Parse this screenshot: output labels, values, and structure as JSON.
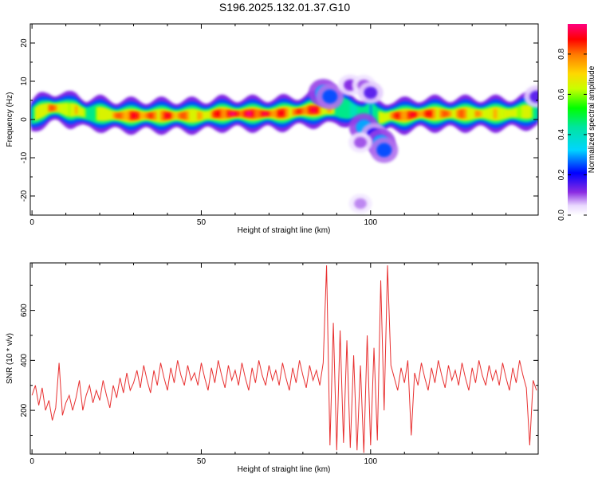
{
  "title": "S196.2025.132.01.37.G10",
  "chart_data": [
    {
      "type": "heatmap",
      "xlabel": "Height of straight line (km)",
      "ylabel": "Frequency (Hz)",
      "xlim": [
        -0.5,
        149.5
      ],
      "ylim": [
        -25,
        25
      ],
      "xticks": [
        0,
        50,
        100
      ],
      "yticks": [
        -20,
        -10,
        0,
        10,
        20
      ],
      "colorbar": {
        "label": "Normalized spectral amplitude",
        "range": [
          0.0,
          0.95
        ],
        "ticks": [
          0.0,
          0.2,
          0.4,
          0.6,
          0.8
        ]
      },
      "ridge": {
        "x": [
          0,
          2,
          5,
          8,
          11,
          13,
          16,
          20,
          25,
          30,
          36,
          40,
          45,
          50,
          55,
          60,
          66,
          72,
          78,
          82,
          86,
          88,
          90,
          92,
          94,
          96,
          98,
          100,
          102,
          104,
          106,
          110,
          115,
          120,
          125,
          130,
          135,
          140,
          145,
          149
        ],
        "freq": [
          1.0,
          2.0,
          3.0,
          3.0,
          2.5,
          2.5,
          1.5,
          1.5,
          1.0,
          1.0,
          1.0,
          1.0,
          1.0,
          1.0,
          1.5,
          1.5,
          1.5,
          1.5,
          2.0,
          2.5,
          2.5,
          2.5,
          3.0,
          3.0,
          2.5,
          2.0,
          1.5,
          2.0,
          0.5,
          0.5,
          1.0,
          1.0,
          1.5,
          1.5,
          1.5,
          1.5,
          1.5,
          1.5,
          2.0,
          2.0
        ],
        "amp": [
          0.55,
          0.7,
          0.85,
          0.8,
          0.6,
          0.9,
          0.55,
          0.7,
          0.85,
          0.9,
          0.85,
          0.9,
          0.85,
          0.75,
          0.9,
          0.95,
          0.95,
          0.9,
          0.85,
          0.95,
          0.85,
          0.75,
          0.6,
          0.5,
          0.45,
          0.5,
          0.55,
          0.45,
          0.6,
          0.7,
          0.85,
          0.9,
          0.9,
          0.85,
          0.85,
          0.8,
          0.75,
          0.75,
          0.7,
          0.65
        ]
      },
      "blobs": [
        {
          "x": 86,
          "freq": 7,
          "amp": 0.3
        },
        {
          "x": 88,
          "freq": 6,
          "amp": 0.25
        },
        {
          "x": 94,
          "freq": 9,
          "amp": 0.12
        },
        {
          "x": 98,
          "freq": 9,
          "amp": 0.1
        },
        {
          "x": 100,
          "freq": 7,
          "amp": 0.15
        },
        {
          "x": 98,
          "freq": -2,
          "amp": 0.3
        },
        {
          "x": 101,
          "freq": -4,
          "amp": 0.2
        },
        {
          "x": 103,
          "freq": -6,
          "amp": 0.3
        },
        {
          "x": 104,
          "freq": -8,
          "amp": 0.25
        },
        {
          "x": 97,
          "freq": -6,
          "amp": 0.1
        },
        {
          "x": 97,
          "freq": -22,
          "amp": 0.08
        },
        {
          "x": 149,
          "freq": 6,
          "amp": 0.15
        }
      ]
    },
    {
      "type": "line",
      "xlabel": "Height of straight line (km)",
      "ylabel": "SNR (10 * v/v)",
      "xlim": [
        -0.5,
        149.5
      ],
      "ylim": [
        25,
        790
      ],
      "xticks": [
        0,
        50,
        100
      ],
      "yticks": [
        200,
        400,
        600
      ],
      "series": [
        {
          "color": "#e83030",
          "x": [
            0,
            1,
            2,
            3,
            4,
            5,
            6,
            7,
            8,
            9,
            10,
            11,
            12,
            13,
            14,
            15,
            16,
            17,
            18,
            19,
            20,
            21,
            22,
            23,
            24,
            25,
            26,
            27,
            28,
            29,
            30,
            31,
            32,
            33,
            34,
            35,
            36,
            37,
            38,
            39,
            40,
            41,
            42,
            43,
            44,
            45,
            46,
            47,
            48,
            49,
            50,
            51,
            52,
            53,
            54,
            55,
            56,
            57,
            58,
            59,
            60,
            61,
            62,
            63,
            64,
            65,
            66,
            67,
            68,
            69,
            70,
            71,
            72,
            73,
            74,
            75,
            76,
            77,
            78,
            79,
            80,
            81,
            82,
            83,
            84,
            85,
            86,
            87,
            88,
            89,
            90,
            91,
            92,
            93,
            94,
            95,
            96,
            97,
            98,
            99,
            100,
            101,
            102,
            103,
            104,
            105,
            106,
            107,
            108,
            109,
            110,
            111,
            112,
            113,
            114,
            115,
            116,
            117,
            118,
            119,
            120,
            121,
            122,
            123,
            124,
            125,
            126,
            127,
            128,
            129,
            130,
            131,
            132,
            133,
            134,
            135,
            136,
            137,
            138,
            139,
            140,
            141,
            142,
            143,
            144,
            145,
            146,
            147,
            148,
            149
          ],
          "y": [
            260,
            300,
            220,
            290,
            200,
            240,
            160,
            210,
            390,
            180,
            230,
            260,
            200,
            250,
            320,
            200,
            260,
            300,
            230,
            280,
            240,
            320,
            260,
            210,
            300,
            250,
            330,
            270,
            350,
            280,
            310,
            360,
            290,
            380,
            320,
            270,
            360,
            300,
            390,
            330,
            280,
            370,
            310,
            400,
            340,
            300,
            380,
            320,
            350,
            300,
            390,
            330,
            280,
            370,
            310,
            400,
            340,
            290,
            380,
            320,
            360,
            300,
            390,
            330,
            280,
            370,
            310,
            400,
            340,
            300,
            380,
            320,
            360,
            300,
            390,
            330,
            280,
            370,
            310,
            400,
            340,
            290,
            380,
            320,
            360,
            300,
            390,
            780,
            60,
            550,
            40,
            520,
            70,
            480,
            50,
            420,
            40,
            380,
            30,
            500,
            60,
            450,
            80,
            720,
            200,
            780,
            380,
            330,
            280,
            370,
            310,
            400,
            100,
            350,
            300,
            390,
            330,
            280,
            370,
            310,
            400,
            340,
            290,
            380,
            320,
            360,
            300,
            390,
            330,
            280,
            370,
            310,
            400,
            340,
            300,
            380,
            320,
            360,
            300,
            390,
            330,
            280,
            370,
            310,
            400,
            340,
            290,
            60,
            320,
            280
          ]
        }
      ]
    }
  ]
}
